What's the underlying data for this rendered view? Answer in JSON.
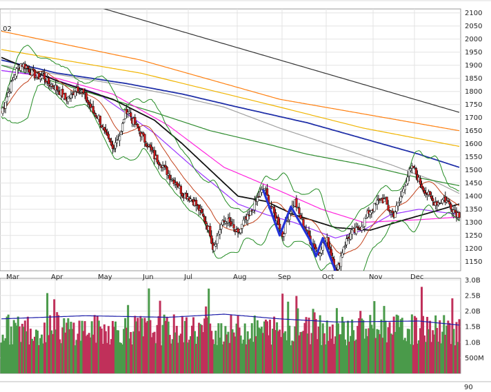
{
  "chart_data": [
    {
      "type": "candlestick",
      "title": "",
      "corner_label": ".02",
      "months": [
        "Mar",
        "Apr",
        "May",
        "Jun",
        "Jul",
        "Aug",
        "Sep",
        "Oct",
        "Nov",
        "Dec"
      ],
      "y_ticks": [
        2100,
        2050,
        2000,
        1950,
        1900,
        1850,
        1800,
        1750,
        1700,
        1650,
        1600,
        1550,
        1500,
        1450,
        1400,
        1350,
        1300,
        1250,
        1200,
        1150
      ],
      "ylim": [
        1115,
        2115
      ],
      "price_anchors": [
        [
          0,
          1720
        ],
        [
          4,
          1780
        ],
        [
          8,
          1840
        ],
        [
          10,
          1870
        ],
        [
          14,
          1905
        ],
        [
          18,
          1895
        ],
        [
          22,
          1870
        ],
        [
          26,
          1855
        ],
        [
          30,
          1860
        ],
        [
          34,
          1830
        ],
        [
          38,
          1820
        ],
        [
          42,
          1800
        ],
        [
          46,
          1770
        ],
        [
          50,
          1780
        ],
        [
          54,
          1815
        ],
        [
          58,
          1800
        ],
        [
          62,
          1760
        ],
        [
          66,
          1720
        ],
        [
          70,
          1700
        ],
        [
          74,
          1640
        ],
        [
          78,
          1600
        ],
        [
          80,
          1580
        ],
        [
          82,
          1610
        ],
        [
          86,
          1640
        ],
        [
          88,
          1700
        ],
        [
          90,
          1730
        ],
        [
          92,
          1720
        ],
        [
          94,
          1690
        ],
        [
          98,
          1660
        ],
        [
          102,
          1620
        ],
        [
          106,
          1590
        ],
        [
          110,
          1550
        ],
        [
          114,
          1530
        ],
        [
          118,
          1500
        ],
        [
          122,
          1470
        ],
        [
          126,
          1450
        ],
        [
          130,
          1410
        ],
        [
          134,
          1400
        ],
        [
          138,
          1380
        ],
        [
          142,
          1350
        ],
        [
          146,
          1310
        ],
        [
          150,
          1260
        ],
        [
          152,
          1205
        ],
        [
          154,
          1230
        ],
        [
          158,
          1290
        ],
        [
          162,
          1310
        ],
        [
          166,
          1280
        ],
        [
          170,
          1250
        ],
        [
          174,
          1300
        ],
        [
          178,
          1320
        ],
        [
          182,
          1370
        ],
        [
          186,
          1410
        ],
        [
          189,
          1430
        ],
        [
          192,
          1380
        ],
        [
          196,
          1330
        ],
        [
          199,
          1300
        ],
        [
          202,
          1250
        ],
        [
          204,
          1290
        ],
        [
          208,
          1350
        ],
        [
          211,
          1380
        ],
        [
          214,
          1330
        ],
        [
          218,
          1280
        ],
        [
          222,
          1230
        ],
        [
          225,
          1210
        ],
        [
          228,
          1180
        ],
        [
          230,
          1210
        ],
        [
          234,
          1230
        ],
        [
          236,
          1200
        ],
        [
          238,
          1160
        ],
        [
          241,
          1110
        ],
        [
          244,
          1170
        ],
        [
          246,
          1210
        ],
        [
          249,
          1240
        ],
        [
          252,
          1260
        ],
        [
          256,
          1270
        ],
        [
          260,
          1300
        ],
        [
          264,
          1340
        ],
        [
          268,
          1360
        ],
        [
          272,
          1390
        ],
        [
          276,
          1380
        ],
        [
          278,
          1350
        ],
        [
          282,
          1330
        ],
        [
          286,
          1380
        ],
        [
          290,
          1450
        ],
        [
          293,
          1490
        ],
        [
          296,
          1510
        ],
        [
          300,
          1460
        ],
        [
          303,
          1430
        ],
        [
          306,
          1410
        ],
        [
          310,
          1380
        ],
        [
          314,
          1375
        ],
        [
          318,
          1390
        ],
        [
          322,
          1370
        ],
        [
          326,
          1340
        ],
        [
          329,
          1330
        ]
      ],
      "moving_averages": [
        {
          "color": "#333333",
          "points": [
            [
              0,
              2230
            ],
            [
              329,
              1720
            ]
          ]
        },
        {
          "color": "#ff7f0e",
          "points": [
            [
              0,
              2030
            ],
            [
              100,
              1920
            ],
            [
              200,
              1770
            ],
            [
              329,
              1650
            ]
          ]
        },
        {
          "color": "#f0b400",
          "points": [
            [
              0,
              1960
            ],
            [
              100,
              1870
            ],
            [
              200,
              1740
            ],
            [
              260,
              1660
            ],
            [
              329,
              1590
            ]
          ]
        },
        {
          "color": "#1f2fa8",
          "points": [
            [
              0,
              1920
            ],
            [
              40,
              1870
            ],
            [
              90,
              1830
            ],
            [
              130,
              1790
            ],
            [
              170,
              1740
            ],
            [
              220,
              1680
            ],
            [
              260,
              1620
            ],
            [
              300,
              1560
            ],
            [
              329,
              1510
            ]
          ]
        },
        {
          "color": "#a0a0a0",
          "points": [
            [
              0,
              1900
            ],
            [
              80,
              1830
            ],
            [
              120,
              1790
            ],
            [
              160,
              1740
            ],
            [
              200,
              1660
            ],
            [
              240,
              1590
            ],
            [
              280,
              1520
            ],
            [
              310,
              1460
            ],
            [
              329,
              1410
            ]
          ]
        },
        {
          "color": "#2e8b2e",
          "points": [
            [
              0,
              1900
            ],
            [
              60,
              1800
            ],
            [
              110,
              1720
            ],
            [
              150,
              1650
            ],
            [
              190,
              1600
            ],
            [
              220,
              1560
            ],
            [
              260,
              1520
            ],
            [
              300,
              1470
            ],
            [
              329,
              1440
            ]
          ]
        },
        {
          "color": "#ff22dd",
          "points": [
            [
              0,
              1880
            ],
            [
              40,
              1850
            ],
            [
              80,
              1790
            ],
            [
              120,
              1670
            ],
            [
              160,
              1510
            ],
            [
              200,
              1420
            ],
            [
              230,
              1350
            ],
            [
              260,
              1300
            ],
            [
              300,
              1310
            ],
            [
              329,
              1320
            ]
          ]
        },
        {
          "color": "#9933ff",
          "points": [
            [
              0,
              1880
            ],
            [
              30,
              1860
            ],
            [
              70,
              1790
            ],
            [
              110,
              1640
            ],
            [
              140,
              1500
            ],
            [
              170,
              1370
            ],
            [
              190,
              1330
            ],
            [
              210,
              1300
            ],
            [
              240,
              1240
            ],
            [
              260,
              1270
            ],
            [
              280,
              1330
            ],
            [
              300,
              1350
            ],
            [
              329,
              1330
            ]
          ]
        },
        {
          "color": "#111111",
          "points": [
            [
              0,
              1930
            ],
            [
              40,
              1840
            ],
            [
              80,
              1770
            ],
            [
              110,
              1690
            ],
            [
              130,
              1600
            ],
            [
              150,
              1500
            ],
            [
              170,
              1400
            ],
            [
              190,
              1380
            ],
            [
              210,
              1330
            ],
            [
              240,
              1280
            ],
            [
              265,
              1270
            ],
            [
              290,
              1310
            ],
            [
              310,
              1340
            ],
            [
              329,
              1370
            ]
          ]
        }
      ],
      "bollinger_color": "#228b22",
      "zigzag": {
        "color": "#2433d6",
        "points": [
          [
            188,
            1425
          ],
          [
            200,
            1250
          ],
          [
            208,
            1360
          ],
          [
            222,
            1230
          ],
          [
            226,
            1170
          ],
          [
            231,
            1240
          ],
          [
            240,
            1115
          ]
        ]
      },
      "volume": {
        "y_ticks": [
          "3.0B",
          "2.5B",
          "2.0B",
          "1.5B",
          "1.0B",
          "500M"
        ],
        "y_tick_values": [
          3.0,
          2.5,
          2.0,
          1.5,
          1.0,
          0.5
        ],
        "ylim": [
          0,
          3.05
        ],
        "bottom_label": "90",
        "avg_color": "#1a1aa8",
        "avg_points": [
          [
            0,
            1.75
          ],
          [
            60,
            1.85
          ],
          [
            120,
            1.8
          ],
          [
            160,
            1.9
          ],
          [
            200,
            1.75
          ],
          [
            240,
            1.65
          ],
          [
            300,
            1.68
          ],
          [
            329,
            1.55
          ]
        ],
        "up_color": "#4a9a4a",
        "down_color": "#c0305a"
      }
    }
  ]
}
